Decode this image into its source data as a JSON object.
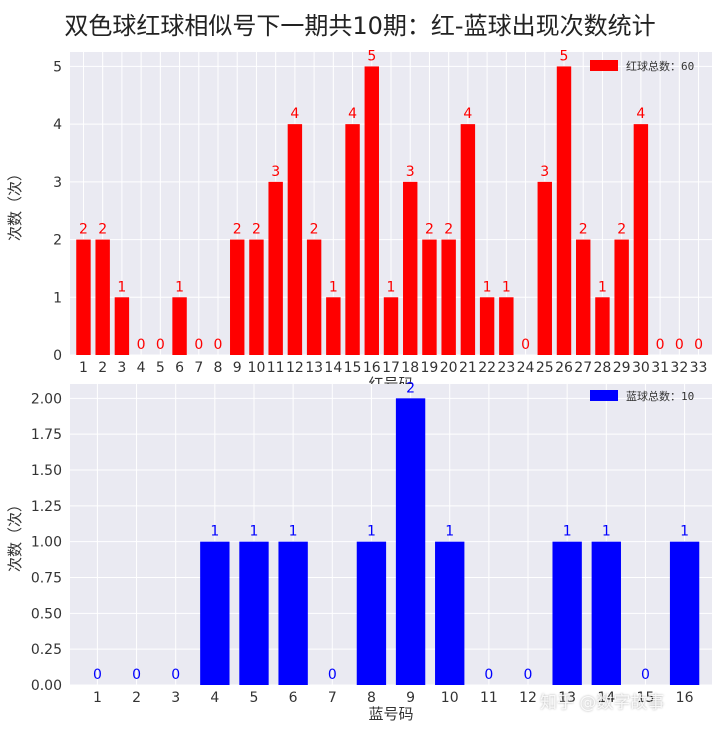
{
  "title": "双色球红球相似号下一期共10期：红-蓝球出现次数统计",
  "watermark": "知乎 @数字故事",
  "chart_data": [
    {
      "type": "bar",
      "categories": [
        "1",
        "2",
        "3",
        "4",
        "5",
        "6",
        "7",
        "8",
        "9",
        "10",
        "11",
        "12",
        "13",
        "14",
        "15",
        "16",
        "17",
        "18",
        "19",
        "20",
        "21",
        "22",
        "23",
        "24",
        "25",
        "26",
        "27",
        "28",
        "29",
        "30",
        "31",
        "32",
        "33"
      ],
      "values": [
        2,
        2,
        1,
        0,
        0,
        1,
        0,
        0,
        2,
        2,
        3,
        4,
        2,
        1,
        4,
        5,
        1,
        3,
        2,
        2,
        4,
        1,
        1,
        0,
        3,
        5,
        2,
        1,
        2,
        4,
        0,
        0,
        0
      ],
      "xlabel": "红号码",
      "ylabel": "次数（次）",
      "yticks": [
        "0",
        "1",
        "2",
        "3",
        "4",
        "5"
      ],
      "ylim": [
        0,
        5.25
      ],
      "legend": "红球总数：60",
      "legend_position": "top-right",
      "color": "#ff0000",
      "grid": true
    },
    {
      "type": "bar",
      "categories": [
        "1",
        "2",
        "3",
        "4",
        "5",
        "6",
        "7",
        "8",
        "9",
        "10",
        "11",
        "12",
        "13",
        "14",
        "15",
        "16"
      ],
      "values": [
        0,
        0,
        0,
        1,
        1,
        1,
        0,
        1,
        2,
        1,
        0,
        0,
        1,
        1,
        0,
        1
      ],
      "xlabel": "蓝号码",
      "ylabel": "次数（次）",
      "yticks": [
        "0.00",
        "0.25",
        "0.50",
        "0.75",
        "1.00",
        "1.25",
        "1.50",
        "1.75",
        "2.00"
      ],
      "ylim": [
        0,
        2.1
      ],
      "legend": "蓝球总数：10",
      "legend_position": "top-right",
      "color": "#0000ff",
      "grid": true
    }
  ]
}
